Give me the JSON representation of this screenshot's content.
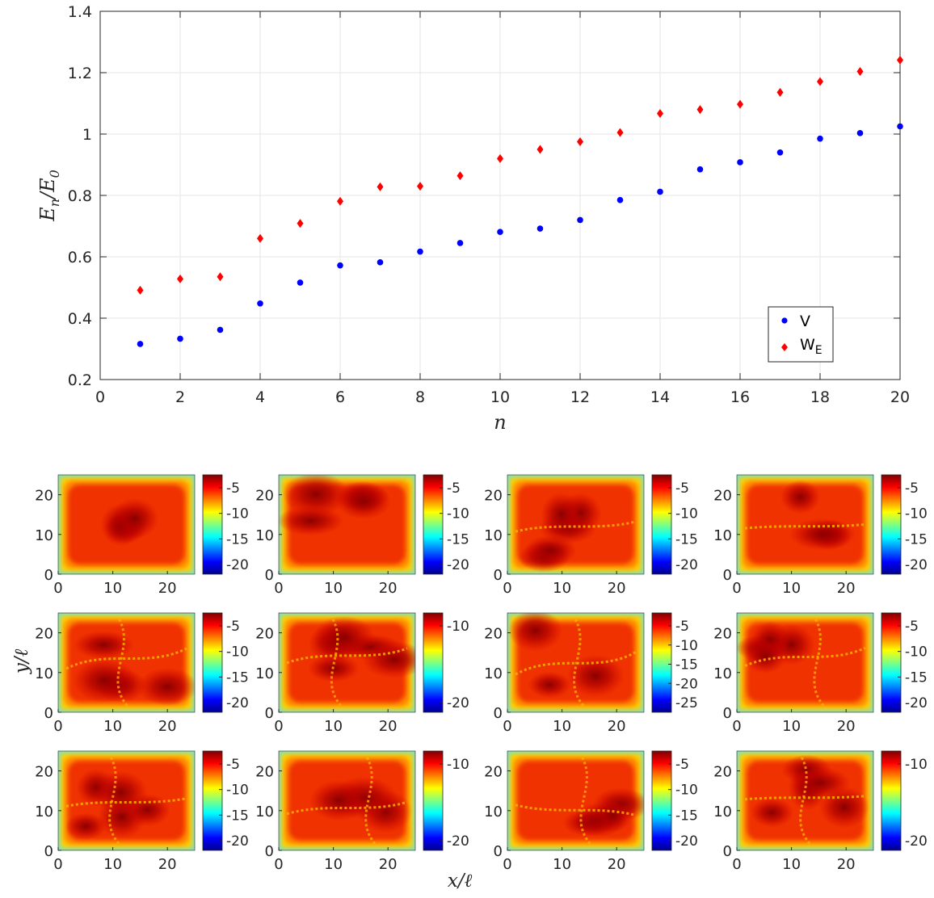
{
  "chart_data": [
    {
      "type": "scatter",
      "xlabel": "n",
      "ylabel": "E_n/E_0",
      "xlim": [
        0,
        20
      ],
      "ylim": [
        0.2,
        1.4
      ],
      "xticks": [
        "0",
        "2",
        "4",
        "6",
        "8",
        "10",
        "12",
        "14",
        "16",
        "18",
        "20"
      ],
      "yticks": [
        "0.2",
        "0.4",
        "0.6",
        "0.8",
        "1",
        "1.2",
        "1.4"
      ],
      "grid": true,
      "legend_position": "bottom-right",
      "x": [
        1,
        2,
        3,
        4,
        5,
        6,
        7,
        8,
        9,
        10,
        11,
        12,
        13,
        14,
        15,
        16,
        17,
        18,
        19,
        20
      ],
      "series": [
        {
          "name": "V",
          "marker": "circle",
          "color": "#0000ff",
          "values": [
            0.316,
            0.333,
            0.362,
            0.448,
            0.516,
            0.572,
            0.582,
            0.617,
            0.645,
            0.681,
            0.692,
            0.72,
            0.785,
            0.812,
            0.885,
            0.908,
            0.94,
            0.985,
            1.003,
            1.025
          ]
        },
        {
          "name": "W_E",
          "marker": "diamond",
          "color": "#ff0000",
          "values": [
            0.491,
            0.528,
            0.535,
            0.66,
            0.709,
            0.781,
            0.828,
            0.83,
            0.864,
            0.92,
            0.95,
            0.975,
            1.005,
            1.067,
            1.08,
            1.097,
            1.136,
            1.171,
            1.204,
            1.241
          ]
        }
      ]
    },
    {
      "type": "heatmap",
      "layout": "3 rows x 4 columns",
      "xlabel": "x/ℓ",
      "ylabel": "y/ℓ",
      "xticks": [
        "0",
        "10",
        "20"
      ],
      "yticks": [
        "0",
        "10",
        "20"
      ],
      "colormap": "jet",
      "panels": [
        {
          "colorbar_ticks": [
            "-5",
            "-10",
            "-15",
            "-20"
          ]
        },
        {
          "colorbar_ticks": [
            "-5",
            "-10",
            "-15",
            "-20"
          ]
        },
        {
          "colorbar_ticks": [
            "-5",
            "-10",
            "-15",
            "-20"
          ]
        },
        {
          "colorbar_ticks": [
            "-5",
            "-10",
            "-15",
            "-20"
          ]
        },
        {
          "colorbar_ticks": [
            "-5",
            "-10",
            "-15",
            "-20"
          ]
        },
        {
          "colorbar_ticks": [
            "-10",
            "-20"
          ]
        },
        {
          "colorbar_ticks": [
            "-5",
            "-10",
            "-15",
            "-20",
            "-25"
          ]
        },
        {
          "colorbar_ticks": [
            "-5",
            "-10",
            "-15",
            "-20"
          ]
        },
        {
          "colorbar_ticks": [
            "-5",
            "-10",
            "-15",
            "-20"
          ]
        },
        {
          "colorbar_ticks": [
            "-10",
            "-20"
          ]
        },
        {
          "colorbar_ticks": [
            "-5",
            "-10",
            "-15",
            "-20"
          ]
        },
        {
          "colorbar_ticks": [
            "-10",
            "-20"
          ]
        }
      ]
    }
  ]
}
